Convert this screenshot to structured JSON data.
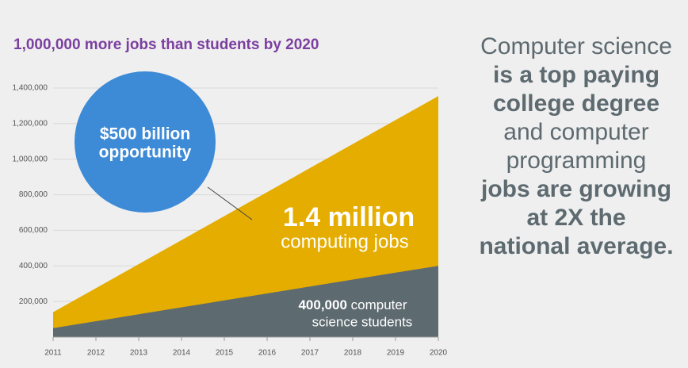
{
  "chart_data": {
    "type": "area",
    "title": "1,000,000 more jobs than students by 2020",
    "x": [
      2011,
      2012,
      2013,
      2014,
      2015,
      2016,
      2017,
      2018,
      2019,
      2020
    ],
    "xlim": [
      2011,
      2020
    ],
    "series": [
      {
        "name": "computing jobs",
        "color": "#e5ad00",
        "values": [
          140000,
          275000,
          410000,
          545000,
          680000,
          815000,
          950000,
          1085000,
          1220000,
          1355000
        ]
      },
      {
        "name": "computer science students",
        "color": "#5d6a70",
        "values": [
          50000,
          89000,
          128000,
          167000,
          206000,
          245000,
          284000,
          323000,
          362000,
          400000
        ]
      }
    ],
    "ylim": [
      0,
      1400000
    ],
    "yticks": [
      {
        "value": 200000,
        "label": "200,000"
      },
      {
        "value": 400000,
        "label": "400,000"
      },
      {
        "value": 600000,
        "label": "600,000"
      },
      {
        "value": 800000,
        "label": "800,000"
      },
      {
        "value": 1000000,
        "label": "1,000,000"
      },
      {
        "value": 1200000,
        "label": "1,200,000"
      },
      {
        "value": 1400000,
        "label": "1,400,000"
      }
    ],
    "grid": true,
    "circle_label": [
      "$500 billion",
      "opportunity"
    ],
    "jobs_label": [
      "1.4 million",
      "computing jobs"
    ],
    "students_label": [
      "400,000",
      "computer",
      "science students"
    ]
  },
  "sidebar": {
    "lines": [
      {
        "text": "Computer science",
        "bold": false
      },
      {
        "text": "is a top paying",
        "bold": true
      },
      {
        "text": "college degree",
        "bold": true
      },
      {
        "text": "and computer",
        "bold": false
      },
      {
        "text": "programming",
        "bold": false
      },
      {
        "text": "jobs are growing",
        "bold": true
      },
      {
        "text": "at 2X the",
        "bold": true
      },
      {
        "text": "national average.",
        "bold": true
      }
    ]
  }
}
